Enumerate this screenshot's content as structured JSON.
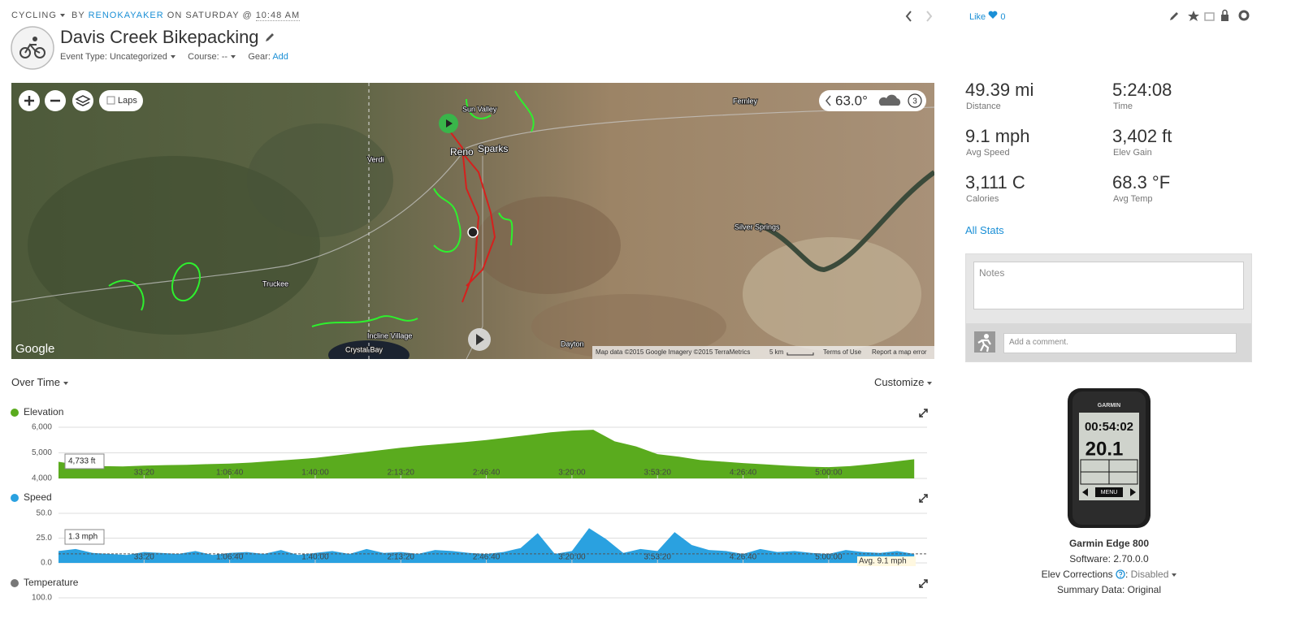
{
  "header": {
    "sport": "CYCLING",
    "by": "BY",
    "user": "RENOKAYAKER",
    "on": "ON SATURDAY @",
    "time": "10:48 AM",
    "title": "Davis Creek Bikepacking",
    "event_type": "Event Type: Uncategorized",
    "course": "Course: --",
    "gear": "Gear:",
    "gear_link": "Add",
    "like": "Like",
    "like_count": "0"
  },
  "map": {
    "laps": "Laps",
    "temperature": "63.0°",
    "weather_count": "3",
    "places": [
      {
        "name": "Sun Valley"
      },
      {
        "name": "Reno"
      },
      {
        "name": "Sparks"
      },
      {
        "name": "Verdi"
      },
      {
        "name": "Truckee"
      },
      {
        "name": "Incline Village"
      },
      {
        "name": "Crystal Bay"
      },
      {
        "name": "Dayton"
      },
      {
        "name": "Silver Springs"
      },
      {
        "name": "Fernley"
      }
    ],
    "google": "Google",
    "attribution": "Map data ©2015 Google Imagery ©2015 TerraMetrics",
    "scale": "5 km",
    "terms": "Terms of Use",
    "report": "Report a map error"
  },
  "stats": [
    {
      "value": "49.39 mi",
      "label": "Distance"
    },
    {
      "value": "5:24:08",
      "label": "Time"
    },
    {
      "value": "9.1 mph",
      "label": "Avg Speed"
    },
    {
      "value": "3,402 ft",
      "label": "Elev Gain"
    },
    {
      "value": "3,111 C",
      "label": "Calories"
    },
    {
      "value": "68.3 °F",
      "label": "Avg Temp"
    }
  ],
  "all_stats": "All Stats",
  "notes": "Notes",
  "comment": "Add a comment.",
  "device": {
    "brand": "GARMIN",
    "screen_time": "00:54:02",
    "screen_speed": "20.1",
    "menu": "MENU",
    "name": "Garmin Edge 800",
    "software": "Software: 2.70.0.0",
    "elev_corrections": "Elev Corrections",
    "elev_status": "Disabled",
    "summary": "Summary Data: Original"
  },
  "charts": {
    "view": "Over Time",
    "customize": "Customize",
    "xlim": [
      0,
      20300
    ],
    "xticks": [
      {
        "value": 2000,
        "label": "33:20"
      },
      {
        "value": 4000,
        "label": "1:06:40"
      },
      {
        "value": 6000,
        "label": "1:40:00"
      },
      {
        "value": 8000,
        "label": "2:13:20"
      },
      {
        "value": 10000,
        "label": "2:46:40"
      },
      {
        "value": 12000,
        "label": "3:20:00"
      },
      {
        "value": 14000,
        "label": "3:53:20"
      },
      {
        "value": 16000,
        "label": "4:26:40"
      },
      {
        "value": 18000,
        "label": "5:00:00"
      }
    ],
    "panels": [
      {
        "type": "area",
        "title": "Elevation",
        "color": "#5aab1e",
        "ylim": [
          4000,
          6000
        ],
        "yticks": [
          {
            "value": 4000,
            "label": "4,000"
          },
          {
            "value": 5000,
            "label": "5,000"
          },
          {
            "value": 6000,
            "label": "6,000"
          }
        ],
        "x": [
          0,
          500,
          1000,
          1500,
          2000,
          2500,
          3000,
          3500,
          4000,
          4500,
          5000,
          5500,
          6000,
          6500,
          7000,
          7500,
          8000,
          8500,
          9000,
          9500,
          10000,
          10500,
          11000,
          11500,
          12000,
          12500,
          13000,
          13500,
          14000,
          14500,
          15000,
          15500,
          16000,
          16500,
          17000,
          17500,
          18000,
          18500,
          19000,
          19500,
          20000
        ],
        "values": [
          4650,
          4520,
          4480,
          4470,
          4500,
          4520,
          4530,
          4560,
          4580,
          4620,
          4680,
          4740,
          4800,
          4900,
          5000,
          5100,
          5200,
          5280,
          5350,
          5420,
          5500,
          5600,
          5700,
          5800,
          5870,
          5900,
          5450,
          5250,
          4950,
          4850,
          4720,
          4660,
          4600,
          4550,
          4500,
          4460,
          4440,
          4480,
          4560,
          4650,
          4750
        ],
        "tooltip": "4,733 ft"
      },
      {
        "type": "area",
        "title": "Speed",
        "color": "#2aa1e0",
        "ylim": [
          0,
          50
        ],
        "yticks": [
          {
            "value": 0,
            "label": "0.0"
          },
          {
            "value": 25,
            "label": "25.0"
          },
          {
            "value": 50,
            "label": "50.0"
          }
        ],
        "x": [
          0,
          400,
          800,
          1200,
          1600,
          2000,
          2400,
          2800,
          3200,
          3600,
          4000,
          4400,
          4800,
          5200,
          5600,
          6000,
          6400,
          6800,
          7200,
          7600,
          8000,
          8400,
          8800,
          9200,
          9600,
          10000,
          10400,
          10800,
          11200,
          11600,
          12000,
          12400,
          12800,
          13200,
          13600,
          14000,
          14400,
          14800,
          15200,
          15600,
          16000,
          16400,
          16800,
          17200,
          17600,
          18000,
          18400,
          18800,
          19200,
          19600,
          20000
        ],
        "values": [
          12,
          14,
          10,
          9,
          8,
          11,
          10,
          9,
          12,
          8,
          10,
          11,
          9,
          13,
          8,
          10,
          12,
          9,
          14,
          10,
          11,
          9,
          13,
          12,
          10,
          9,
          11,
          15,
          30,
          9,
          12,
          35,
          24,
          10,
          14,
          12,
          31,
          18,
          13,
          12,
          9,
          14,
          11,
          12,
          10,
          9,
          13,
          11,
          10,
          12,
          9
        ],
        "average": 9.1,
        "average_label": "Avg. 9.1 mph",
        "tooltip": "1.3 mph"
      },
      {
        "type": "area",
        "title": "Temperature",
        "color": "#777777",
        "yticks": [
          {
            "value": 100,
            "label": "100.0"
          }
        ]
      }
    ]
  }
}
